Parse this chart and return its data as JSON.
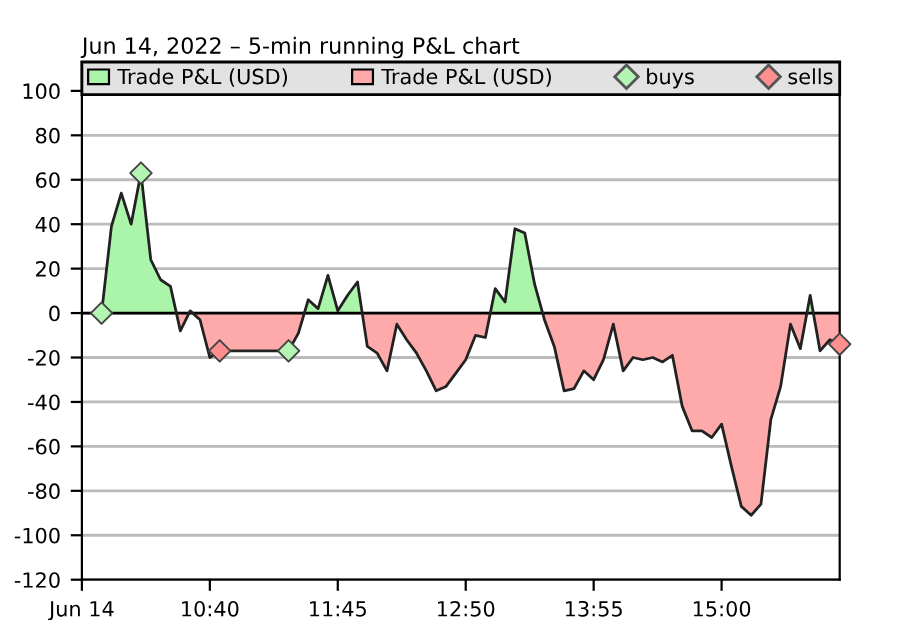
{
  "chart_data": {
    "type": "area",
    "title": "Jun 14, 2022 – 5-min running P&L chart",
    "x": [
      9.75,
      9.8333,
      9.9167,
      10,
      10.0833,
      10.1667,
      10.25,
      10.3333,
      10.4167,
      10.5,
      10.5833,
      10.6667,
      10.75,
      10.8333,
      10.9167,
      11,
      11.0833,
      11.1667,
      11.25,
      11.3333,
      11.4167,
      11.5,
      11.5833,
      11.6667,
      11.75,
      11.8333,
      11.9167,
      12,
      12.0833,
      12.1667,
      12.25,
      12.3333,
      12.4167,
      12.5,
      12.5833,
      12.6667,
      12.75,
      12.8333,
      12.9167,
      13,
      13.0833,
      13.1667,
      13.25,
      13.3333,
      13.4167,
      13.5,
      13.5833,
      13.6667,
      13.75,
      13.8333,
      13.9167,
      14,
      14.0833,
      14.1667,
      14.25,
      14.3333,
      14.4167,
      14.5,
      14.5833,
      14.6667,
      14.75,
      14.8333,
      14.9167,
      15,
      15.0833,
      15.1667,
      15.25,
      15.3333,
      15.4167,
      15.5,
      15.5833,
      15.6667,
      15.75,
      15.8333,
      15.9167,
      16
    ],
    "series": [
      {
        "name": "Trade P&L (USD)",
        "color": "#aaf5aa",
        "x": [
          9.75,
          9.8333,
          9.9167,
          10,
          10.0833,
          10.1667,
          10.25,
          10.3333,
          10.3833,
          11,
          11.4667,
          11.5,
          11.5833,
          11.6667,
          11.75,
          11.8333,
          11.9167,
          11.9569,
          12.5,
          13.0417,
          13.0833,
          13.1667,
          13.25,
          13.3333,
          13.4167,
          13.4844,
          14.5,
          15.7222,
          15.75,
          15.7767
        ],
        "values": [
          0,
          39,
          54,
          40,
          63,
          24,
          15,
          12,
          0,
          null,
          0,
          6,
          2,
          17,
          1,
          8,
          14,
          0,
          null,
          0,
          11,
          5,
          38,
          36,
          13,
          0,
          null,
          0,
          8,
          0
        ]
      },
      {
        "name": "Trade P&L (USD)",
        "color": "#ffaaaa",
        "x": [
          10.3833,
          10.4167,
          10.4907,
          10.5,
          10.5208,
          10.5833,
          10.6667,
          10.75,
          10.8333,
          10.9167,
          11,
          11.0833,
          11.1667,
          11.25,
          11.3333,
          11.4167,
          11.4667,
          11.7,
          11.9569,
          12,
          12.0833,
          12.1667,
          12.25,
          12.3333,
          12.4167,
          12.5,
          12.5833,
          12.6667,
          12.75,
          12.8333,
          12.9167,
          13,
          13.0417,
          13.25,
          13.4844,
          13.5,
          13.5833,
          13.6667,
          13.75,
          13.8333,
          13.9167,
          14,
          14.0833,
          14.1667,
          14.25,
          14.3333,
          14.4167,
          14.5,
          14.5833,
          14.6667,
          14.75,
          14.8333,
          14.9167,
          15,
          15.0833,
          15.1667,
          15.25,
          15.3333,
          15.4167,
          15.5,
          15.5833,
          15.6667,
          15.7222,
          15.75,
          15.7767,
          15.8333,
          15.9167,
          16
        ],
        "values": [
          0,
          -8,
          0,
          null,
          0,
          -3,
          -20,
          -17,
          -17,
          -17,
          -17,
          -17,
          -17,
          -17,
          -17,
          -9,
          0,
          null,
          0,
          -15,
          -18,
          -26,
          -5,
          -12,
          -18,
          -26,
          -35,
          -33,
          -27,
          -21,
          -10,
          -11,
          0,
          null,
          0,
          -3,
          -15,
          -35,
          -34,
          -26,
          -30,
          -21,
          -5,
          -26,
          -20,
          -21,
          -20,
          -22,
          -19,
          -42,
          -53,
          -53,
          -56,
          -50,
          -69,
          -87,
          -91,
          -86,
          -48,
          -33,
          -5,
          -16,
          0,
          null,
          0,
          -17,
          -12,
          -14
        ]
      },
      {
        "type": "line",
        "color": "#222222",
        "values": [
          0,
          39,
          54,
          40,
          63,
          24,
          15,
          12,
          -8,
          1,
          -3,
          -20,
          -17,
          -17,
          -17,
          -17,
          -17,
          -17,
          -17,
          -17,
          -9,
          6,
          2,
          17,
          1,
          8,
          14,
          -15,
          -18,
          -26,
          -5,
          -12,
          -18,
          -26,
          -35,
          -33,
          -27,
          -21,
          -10,
          -11,
          11,
          5,
          38,
          36,
          13,
          -3,
          -15,
          -35,
          -34,
          -26,
          -30,
          -21,
          -5,
          -26,
          -20,
          -21,
          -20,
          -22,
          -19,
          -42,
          -53,
          -53,
          -56,
          -50,
          -69,
          -87,
          -91,
          -86,
          -48,
          -33,
          -5,
          -16,
          8,
          -17,
          -12,
          -14
        ]
      },
      {
        "type": "scatter",
        "name": "buys",
        "color": "#b4f5b4",
        "marker": "diamond",
        "x": [
          9.75,
          10.0833,
          11.3333
        ],
        "values": [
          0,
          63,
          -17
        ]
      },
      {
        "type": "scatter",
        "name": "sells",
        "color": "#ff8f8f",
        "marker": "diamond",
        "x": [
          10.75,
          16
        ],
        "values": [
          -17,
          -14
        ]
      }
    ],
    "ref_lines": [
      {
        "axis": "y",
        "value": 0,
        "color": "#000000"
      }
    ],
    "xlim": [
      9.5833,
      16
    ],
    "xticks": [
      {
        "value": 9.5833,
        "label": "Jun 14"
      },
      {
        "value": 10.6667,
        "label": "10:40"
      },
      {
        "value": 11.75,
        "label": "11:45"
      },
      {
        "value": 12.8333,
        "label": "12:50"
      },
      {
        "value": 13.9167,
        "label": "13:55"
      },
      {
        "value": 15,
        "label": "15:00"
      }
    ],
    "ylim": [
      -120,
      113
    ],
    "yticks": [
      -120,
      -100,
      -80,
      -60,
      -40,
      -20,
      0,
      20,
      40,
      60,
      80,
      100
    ],
    "grid": "y",
    "legend": "top"
  }
}
